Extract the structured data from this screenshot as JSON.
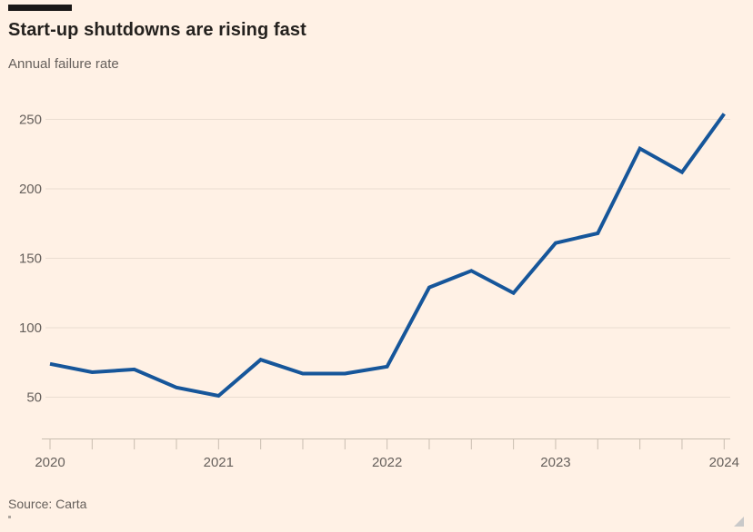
{
  "page": {
    "background_color": "#FFF1E5"
  },
  "chart_data": {
    "type": "line",
    "title": "Start-up shutdowns are rising fast",
    "subtitle": "Annual failure rate",
    "source": "Source: Carta",
    "x": [
      "2020 Q1",
      "2020 Q2",
      "2020 Q3",
      "2020 Q4",
      "2021 Q1",
      "2021 Q2",
      "2021 Q3",
      "2021 Q4",
      "2022 Q1",
      "2022 Q2",
      "2022 Q3",
      "2022 Q4",
      "2023 Q1",
      "2023 Q2",
      "2023 Q3",
      "2023 Q4",
      "2024 Q1"
    ],
    "series": [
      {
        "name": "Annual failure rate",
        "values": [
          74,
          68,
          70,
          57,
          51,
          77,
          67,
          67,
          72,
          129,
          141,
          125,
          161,
          168,
          229,
          212,
          254
        ]
      }
    ],
    "y_ticks": [
      50,
      100,
      150,
      200,
      250
    ],
    "x_tick_labels": [
      "2020",
      "2021",
      "2022",
      "2023",
      "2024"
    ],
    "x_label_every": 4,
    "ylim": [
      20,
      260
    ],
    "grid": "horizontal",
    "legend": "none",
    "xlabel": "",
    "ylabel": "",
    "colors": {
      "line": "#16569A",
      "grid": "#EADDD1",
      "axis": "#C9BDB0",
      "labels": "#66605C",
      "title": "#24211E",
      "background": "#FFF1E5"
    }
  }
}
